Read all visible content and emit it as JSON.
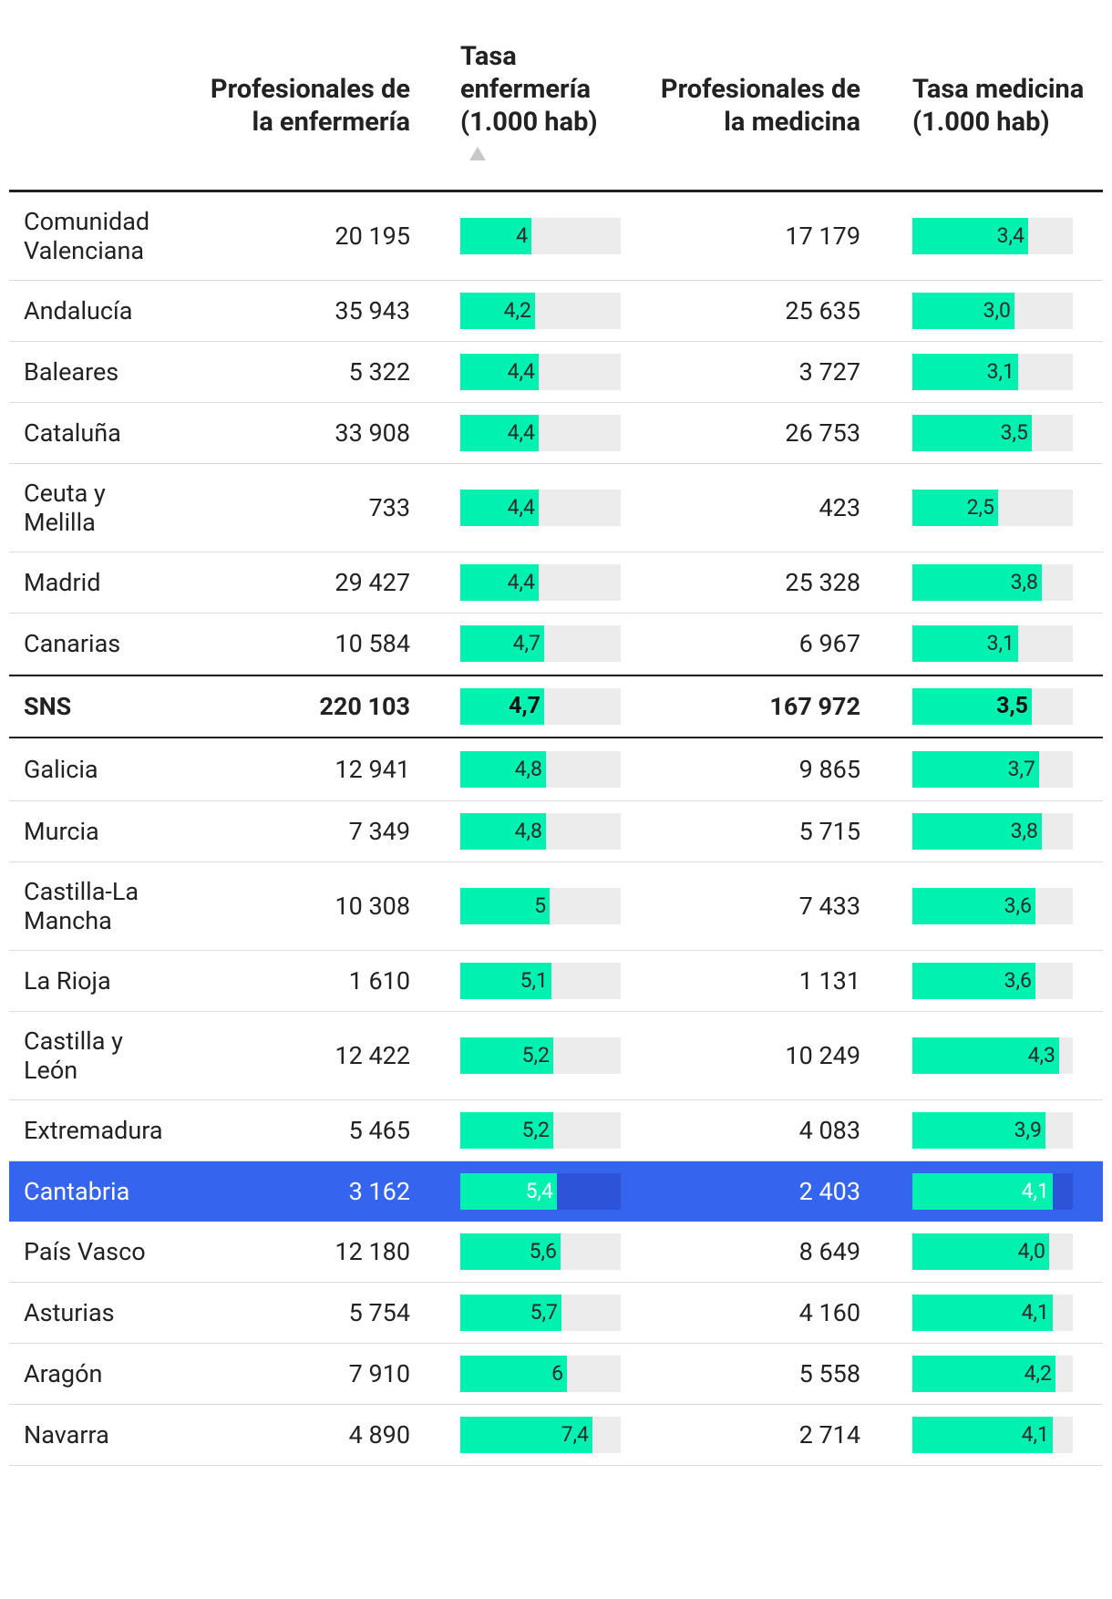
{
  "headers": {
    "c1": "Profesionales de la enfermería",
    "c2": "Tasa enfermería (1.000 hab)",
    "c3": "Profesionales de la medicina",
    "c4": "Tasa medicina (1.000 hab)"
  },
  "chart_data": {
    "type": "table",
    "columns": [
      "Profesionales de la enfermería",
      "Tasa enfermería (1.000 hab)",
      "Profesionales de la medicina",
      "Tasa medicina (1.000 hab)"
    ],
    "sorted_by": "Tasa enfermería (1.000 hab)",
    "sort_order": "ascending",
    "bar_max": {
      "enfermeria": 9.0,
      "medicina": 4.7
    },
    "colors": {
      "bar": "#00f1b0",
      "track": "#ececec",
      "highlight": "#3565ee"
    },
    "highlight_row": "Cantabria",
    "rows": [
      {
        "region": "Comunidad Valenciana",
        "enf": "20 195",
        "tasa_enf": "4",
        "tasa_enf_num": 4.0,
        "med": "17 179",
        "tasa_med": "3,4",
        "tasa_med_num": 3.4
      },
      {
        "region": "Andalucía",
        "enf": "35 943",
        "tasa_enf": "4,2",
        "tasa_enf_num": 4.2,
        "med": "25 635",
        "tasa_med": "3,0",
        "tasa_med_num": 3.0
      },
      {
        "region": "Baleares",
        "enf": "5 322",
        "tasa_enf": "4,4",
        "tasa_enf_num": 4.4,
        "med": "3 727",
        "tasa_med": "3,1",
        "tasa_med_num": 3.1
      },
      {
        "region": "Cataluña",
        "enf": "33 908",
        "tasa_enf": "4,4",
        "tasa_enf_num": 4.4,
        "med": "26 753",
        "tasa_med": "3,5",
        "tasa_med_num": 3.5
      },
      {
        "region": "Ceuta y Melilla",
        "enf": "733",
        "tasa_enf": "4,4",
        "tasa_enf_num": 4.4,
        "med": "423",
        "tasa_med": "2,5",
        "tasa_med_num": 2.5
      },
      {
        "region": "Madrid",
        "enf": "29 427",
        "tasa_enf": "4,4",
        "tasa_enf_num": 4.4,
        "med": "25 328",
        "tasa_med": "3,8",
        "tasa_med_num": 3.8
      },
      {
        "region": "Canarias",
        "enf": "10 584",
        "tasa_enf": "4,7",
        "tasa_enf_num": 4.7,
        "med": "6 967",
        "tasa_med": "3,1",
        "tasa_med_num": 3.1
      },
      {
        "region": "SNS",
        "enf": "220 103",
        "tasa_enf": "4,7",
        "tasa_enf_num": 4.7,
        "med": "167 972",
        "tasa_med": "3,5",
        "tasa_med_num": 3.5,
        "total": true
      },
      {
        "region": "Galicia",
        "enf": "12 941",
        "tasa_enf": "4,8",
        "tasa_enf_num": 4.8,
        "med": "9 865",
        "tasa_med": "3,7",
        "tasa_med_num": 3.7
      },
      {
        "region": "Murcia",
        "enf": "7 349",
        "tasa_enf": "4,8",
        "tasa_enf_num": 4.8,
        "med": "5 715",
        "tasa_med": "3,8",
        "tasa_med_num": 3.8
      },
      {
        "region": "Castilla-La Mancha",
        "enf": "10 308",
        "tasa_enf": "5",
        "tasa_enf_num": 5.0,
        "med": "7 433",
        "tasa_med": "3,6",
        "tasa_med_num": 3.6
      },
      {
        "region": "La Rioja",
        "enf": "1 610",
        "tasa_enf": "5,1",
        "tasa_enf_num": 5.1,
        "med": "1 131",
        "tasa_med": "3,6",
        "tasa_med_num": 3.6
      },
      {
        "region": "Castilla y León",
        "enf": "12 422",
        "tasa_enf": "5,2",
        "tasa_enf_num": 5.2,
        "med": "10 249",
        "tasa_med": "4,3",
        "tasa_med_num": 4.3
      },
      {
        "region": "Extremadura",
        "enf": "5 465",
        "tasa_enf": "5,2",
        "tasa_enf_num": 5.2,
        "med": "4 083",
        "tasa_med": "3,9",
        "tasa_med_num": 3.9
      },
      {
        "region": "Cantabria",
        "enf": "3 162",
        "tasa_enf": "5,4",
        "tasa_enf_num": 5.4,
        "med": "2 403",
        "tasa_med": "4,1",
        "tasa_med_num": 4.1,
        "highlight": true
      },
      {
        "region": "País Vasco",
        "enf": "12 180",
        "tasa_enf": "5,6",
        "tasa_enf_num": 5.6,
        "med": "8 649",
        "tasa_med": "4,0",
        "tasa_med_num": 4.0
      },
      {
        "region": "Asturias",
        "enf": "5 754",
        "tasa_enf": "5,7",
        "tasa_enf_num": 5.7,
        "med": "4 160",
        "tasa_med": "4,1",
        "tasa_med_num": 4.1
      },
      {
        "region": "Aragón",
        "enf": "7 910",
        "tasa_enf": "6",
        "tasa_enf_num": 6.0,
        "med": "5 558",
        "tasa_med": "4,2",
        "tasa_med_num": 4.2
      },
      {
        "region": "Navarra",
        "enf": "4 890",
        "tasa_enf": "7,4",
        "tasa_enf_num": 7.4,
        "med": "2 714",
        "tasa_med": "4,1",
        "tasa_med_num": 4.1
      }
    ]
  }
}
